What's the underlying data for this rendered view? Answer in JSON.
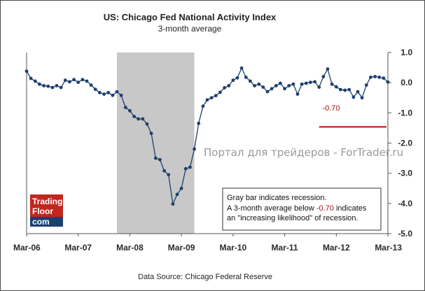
{
  "chart_data": {
    "type": "line",
    "title": "US: Chicago Fed National Activity Index",
    "subtitle": "3-month average",
    "source": "Data Source: Chicago Federal Reserve",
    "watermark": "Портал для трейдеров - ForTrader.ru",
    "logo": {
      "line1": "Trading",
      "line2": "Floor",
      "line3": "com"
    },
    "ylim": [
      -5.0,
      1.0
    ],
    "y_ticks": [
      "1.0",
      "0.0",
      "-1.0",
      "-2.0",
      "-3.0",
      "-4.0",
      "-5.0"
    ],
    "y_tick_values": [
      1.0,
      0.0,
      -1.0,
      -2.0,
      -3.0,
      -4.0,
      -5.0
    ],
    "x_tick_labels": [
      "Mar-06",
      "Mar-07",
      "Mar-08",
      "Mar-09",
      "Mar-10",
      "Mar-11",
      "Mar-12",
      "Mar-13"
    ],
    "x_start": "Mar-06",
    "months_span": 84,
    "recession": {
      "start_index": 21,
      "end_index": 39
    },
    "threshold": {
      "value": -0.7,
      "label": "-0.70",
      "from_index": 68,
      "to_index": 84
    },
    "annotation": {
      "line1": "Gray bar indicates recession.",
      "line2_prefix": "A 3-month average below ",
      "line2_highlight": "-0.70",
      "line2_suffix": " indicates",
      "line3": "an \"increasing likelihood\" of recession."
    },
    "colors": {
      "line": "#1f3f6e",
      "recession": "#c8c8c8",
      "threshold": "#b01010",
      "logo_top": "#c0271f",
      "logo_bottom": "#1f3f6e"
    },
    "series": [
      {
        "name": "CFNAI 3-month average",
        "values": [
          0.38,
          0.14,
          0.05,
          -0.05,
          -0.1,
          -0.12,
          -0.16,
          -0.1,
          -0.16,
          0.08,
          0.03,
          0.1,
          0.01,
          0.1,
          0.05,
          -0.08,
          -0.22,
          -0.33,
          -0.38,
          -0.33,
          -0.42,
          -0.3,
          -0.42,
          -0.82,
          -0.93,
          -1.12,
          -1.2,
          -1.2,
          -1.37,
          -1.68,
          -2.5,
          -2.55,
          -2.92,
          -3.05,
          -4.02,
          -3.7,
          -3.5,
          -2.85,
          -2.8,
          -2.2,
          -1.35,
          -0.78,
          -0.57,
          -0.5,
          -0.43,
          -0.32,
          -0.17,
          -0.1,
          0.08,
          0.16,
          0.48,
          0.18,
          0.05,
          -0.1,
          -0.05,
          -0.15,
          -0.3,
          -0.2,
          -0.1,
          -0.02,
          -0.2,
          -0.1,
          -0.05,
          -0.38,
          -0.05,
          -0.02,
          0.01,
          0.03,
          -0.15,
          0.2,
          0.45,
          -0.05,
          -0.14,
          -0.23,
          -0.25,
          -0.23,
          -0.48,
          -0.3,
          -0.5,
          -0.08,
          0.18,
          0.2,
          0.18,
          0.15,
          0.02
        ]
      }
    ]
  }
}
